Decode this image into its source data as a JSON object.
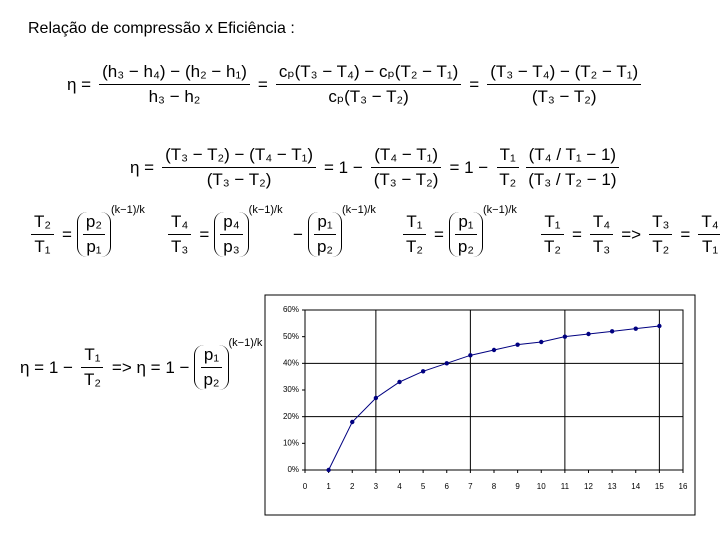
{
  "title": "Relação de compressão x Eficiência :",
  "equations": [
    {
      "parts": [
        {
          "text": "η ="
        },
        {
          "num": "(h₃ − h₄) − (h₂ − h₁)",
          "den": "h₃ − h₂"
        },
        {
          "text": "="
        },
        {
          "num": "cₚ(T₃ − T₄) − cₚ(T₂ − T₁)",
          "den": "cₚ(T₃ − T₂)"
        },
        {
          "text": "="
        },
        {
          "num": "(T₃ − T₄) − (T₂ − T₁)",
          "den": "(T₃ − T₂)"
        }
      ]
    },
    {
      "parts": [
        {
          "text": "η ="
        },
        {
          "num": "(T₃ − T₂) − (T₄ − T₁)",
          "den": "(T₃ − T₂)"
        },
        {
          "text": "= 1 −"
        },
        {
          "num": "(T₄ − T₁)",
          "den": "(T₃ − T₂)"
        },
        {
          "text": "= 1 −"
        },
        {
          "num": "T₁",
          "den": "T₂"
        },
        {
          "num": "(T₄ / T₁ − 1)",
          "den": "(T₃ / T₂ − 1)"
        }
      ]
    },
    {
      "parts": [
        {
          "num": "T₂",
          "den": "T₁"
        },
        {
          "text": "="
        },
        {
          "num": "p₂",
          "den": "p₁",
          "paren": true,
          "exp": "(k−1)/k"
        }
      ]
    },
    {
      "parts": [
        {
          "num": "T₄",
          "den": "T₃"
        },
        {
          "text": "="
        },
        {
          "num": "p₄",
          "den": "p₃",
          "paren": true,
          "exp": "(k−1)/k"
        }
      ]
    },
    {
      "parts": [
        {
          "text": "−"
        },
        {
          "num": "p₁",
          "den": "p₂",
          "paren": true,
          "exp": "(k−1)/k"
        }
      ]
    },
    {
      "parts": [
        {
          "num": "T₁",
          "den": "T₂"
        },
        {
          "text": "="
        },
        {
          "num": "p₁",
          "den": "p₂",
          "paren": true,
          "exp": "(k−1)/k"
        }
      ]
    },
    {
      "parts": [
        {
          "num": "T₁",
          "den": "T₂"
        },
        {
          "text": "="
        },
        {
          "num": "T₄",
          "den": "T₃"
        },
        {
          "text": "=>"
        },
        {
          "num": "T₃",
          "den": "T₂"
        },
        {
          "text": "="
        },
        {
          "num": "T₄",
          "den": "T₁"
        }
      ]
    },
    {
      "parts": [
        {
          "text": "η = 1 −"
        },
        {
          "num": "T₁",
          "den": "T₂"
        },
        {
          "text": "=> η = 1 −"
        },
        {
          "num": "p₁",
          "den": "p₂",
          "paren": true,
          "exp": "(k−1)/k"
        }
      ]
    }
  ],
  "chart_data": {
    "type": "line",
    "x": [
      1,
      2,
      3,
      4,
      5,
      6,
      7,
      8,
      9,
      10,
      11,
      12,
      13,
      14,
      15
    ],
    "series": [
      {
        "color": "#000080",
        "values": [
          0,
          18,
          27,
          33,
          37,
          40,
          43,
          45,
          47,
          48,
          50,
          51,
          52,
          53,
          54
        ]
      }
    ],
    "xlim": [
      0,
      16
    ],
    "xticks": [
      0,
      1,
      2,
      3,
      4,
      5,
      6,
      7,
      8,
      9,
      10,
      11,
      12,
      13,
      14,
      15,
      16
    ],
    "ylim": [
      0,
      60
    ],
    "yticks": [
      {
        "value": 0,
        "label": "0%"
      },
      {
        "value": 10,
        "label": "10%"
      },
      {
        "value": 20,
        "label": "20%"
      },
      {
        "value": 30,
        "label": "30%"
      },
      {
        "value": 40,
        "label": "40%"
      },
      {
        "value": 50,
        "label": "50%"
      },
      {
        "value": 60,
        "label": "60%"
      }
    ],
    "xgrid": [
      3,
      7,
      11,
      15
    ],
    "ygrid": [
      20,
      40
    ]
  }
}
